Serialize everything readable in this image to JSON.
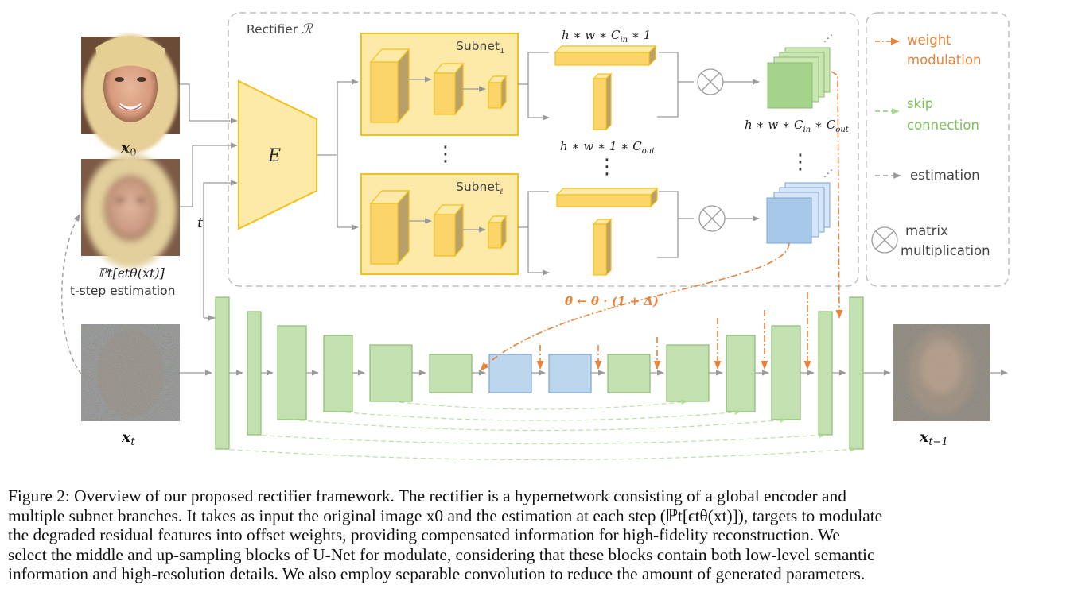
{
  "colors": {
    "rectifier_border": "#bdbdbd",
    "subnet_fill": "#fde9a8",
    "subnet_border": "#f3c01c",
    "block_face": "#fcd56a",
    "block_side": "#b8a068",
    "green_fill": "#c3e0b0",
    "green_border": "#8dbb72",
    "blue_fill": "#bcd6ee",
    "blue_border": "#7aa6d3",
    "weight_modulation": "#e8833a",
    "skip_connection": "#8fcb6f",
    "estimation": "#9a9a9a"
  },
  "diagram": {
    "rectifier_label": "Rectifier ",
    "rectifier_symbol": "ℛ",
    "encoder_label": "E",
    "subnet_label": "Subnet",
    "subnet1_sub": "1",
    "subnet_l_sub": "ℓ",
    "dims_row": "h ∗ w ∗ C",
    "dims_row_sub": "in",
    "dims_row_tail": " ∗ 1",
    "dims_col": "h ∗ w ∗ 1 ∗ C",
    "dims_col_sub": "out",
    "dims_full": "h ∗ w ∗ C",
    "dims_full_sub1": "in",
    "dims_full_mid": " ∗ C",
    "dims_full_sub2": "out",
    "vdots": "⋮",
    "t_label": "t",
    "x0_label": "x",
    "x0_sub": "0",
    "xt_label": "x",
    "xt_sub": "t",
    "xt1_label": "x",
    "xt1_sub": "t−1",
    "est_formula": "ℙt[ϵtθ(xt)]",
    "est_caption": "t-step estimation",
    "update_formula": "θ̂ ← θ · (1 + Δ)"
  },
  "legend": {
    "weight_modulation": [
      "weight",
      "modulation"
    ],
    "skip_connection": [
      "skip",
      "connection"
    ],
    "estimation": "estimation",
    "matrix_multiplication": [
      "matrix",
      "multiplication"
    ]
  },
  "caption": {
    "lines": [
      "Figure 2: Overview of our proposed rectifier framework. The rectifier is a hypernetwork consisting of a global encoder and",
      "multiple subnet branches. It takes as input the original image x0 and the estimation at each step (ℙt[ϵtθ(xt)]), targets to modulate",
      "the degraded residual features into offset weights, providing compensated information for high-fidelity reconstruction. We",
      "select the middle and up-sampling blocks of U-Net for modulate, considering that these blocks contain both low-level semantic",
      "information and high-resolution details. We also employ separable convolution to reduce the amount of generated parameters."
    ]
  }
}
